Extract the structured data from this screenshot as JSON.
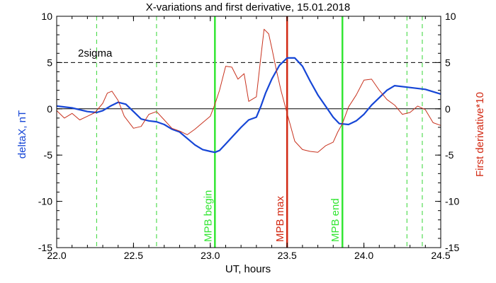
{
  "chart_data": {
    "type": "line",
    "title": "X-variations and first derivative, 15.01.2018",
    "xlabel": "UT, hours",
    "ylabel_left": "deltaX, nT",
    "ylabel_right": "First derivative*10",
    "xlim": [
      22.0,
      24.5
    ],
    "ylim_left": [
      -15,
      10
    ],
    "ylim_right": [
      -15,
      10
    ],
    "x_ticks": [
      22.0,
      22.5,
      23.0,
      23.5,
      24.0,
      24.5
    ],
    "x_tick_labels": [
      "22.0",
      "22.5",
      "23.0",
      "23.5",
      "24.0",
      "24.5"
    ],
    "y_ticks": [
      -15,
      -10,
      -5,
      0,
      5,
      10
    ],
    "y_tick_labels": [
      "-15",
      "-10",
      "-5",
      "0",
      "5",
      "10"
    ],
    "colors": {
      "deltaX": "#1646d6",
      "derivative": "#c8321e",
      "mpb_boundary": "#33e633",
      "mpb_max": "#d22a14",
      "dashed_green": "#33d633",
      "axes": "#000000"
    },
    "reference_lines": {
      "two_sigma": {
        "label": "2sigma",
        "value": 5
      },
      "zero": {
        "value": 0
      }
    },
    "vertical_markers": [
      {
        "x": 23.03,
        "label": "MPB begin",
        "kind": "mpb_boundary"
      },
      {
        "x": 23.5,
        "label": "MPB max",
        "kind": "mpb_max"
      },
      {
        "x": 23.86,
        "label": "MPB end",
        "kind": "mpb_boundary"
      }
    ],
    "dashed_markers": [
      22.26,
      22.65,
      24.28,
      24.38
    ],
    "series": [
      {
        "key": "deltaX",
        "axis": "left",
        "x": [
          22.0,
          22.1,
          22.2,
          22.26,
          22.3,
          22.35,
          22.4,
          22.45,
          22.5,
          22.55,
          22.6,
          22.65,
          22.7,
          22.75,
          22.8,
          22.85,
          22.9,
          22.95,
          23.0,
          23.03,
          23.06,
          23.1,
          23.15,
          23.2,
          23.25,
          23.3,
          23.33,
          23.36,
          23.4,
          23.45,
          23.5,
          23.55,
          23.6,
          23.65,
          23.7,
          23.75,
          23.8,
          23.84,
          23.9,
          23.95,
          24.0,
          24.05,
          24.1,
          24.15,
          24.2,
          24.3,
          24.4,
          24.5
        ],
        "values": [
          0.3,
          0.1,
          -0.3,
          -0.4,
          -0.2,
          0.3,
          0.7,
          0.5,
          -0.3,
          -1.1,
          -1.3,
          -1.4,
          -1.7,
          -2.2,
          -2.5,
          -3.2,
          -3.9,
          -4.4,
          -4.6,
          -4.7,
          -4.5,
          -3.8,
          -2.9,
          -2.0,
          -1.2,
          -0.9,
          0.3,
          1.7,
          3.2,
          4.7,
          5.5,
          5.5,
          4.6,
          3.0,
          1.5,
          0.3,
          -0.9,
          -1.6,
          -1.7,
          -1.3,
          -0.6,
          0.4,
          1.2,
          2.0,
          2.5,
          2.3,
          2.1,
          1.6
        ]
      },
      {
        "key": "derivative",
        "axis": "right",
        "x": [
          22.0,
          22.05,
          22.1,
          22.15,
          22.2,
          22.25,
          22.3,
          22.33,
          22.36,
          22.4,
          22.44,
          22.5,
          22.55,
          22.6,
          22.65,
          22.7,
          22.75,
          22.8,
          22.85,
          22.9,
          22.95,
          23.0,
          23.03,
          23.06,
          23.1,
          23.14,
          23.18,
          23.22,
          23.25,
          23.3,
          23.33,
          23.35,
          23.38,
          23.4,
          23.43,
          23.46,
          23.5,
          23.55,
          23.6,
          23.65,
          23.7,
          23.75,
          23.8,
          23.83,
          23.86,
          23.9,
          23.95,
          24.0,
          24.05,
          24.1,
          24.15,
          24.2,
          24.25,
          24.3,
          24.35,
          24.4,
          24.45,
          24.5
        ],
        "values": [
          -0.2,
          -1.0,
          -0.5,
          -1.2,
          -0.8,
          -0.4,
          0.6,
          1.7,
          1.9,
          0.9,
          -0.8,
          -2.1,
          -1.9,
          -0.6,
          -0.3,
          -1.2,
          -2.1,
          -2.4,
          -2.8,
          -2.2,
          -1.5,
          -0.8,
          0.5,
          2.0,
          4.6,
          4.5,
          3.2,
          3.8,
          0.8,
          1.3,
          5.7,
          8.6,
          8.1,
          6.6,
          4.2,
          2.0,
          -0.5,
          -3.5,
          -4.4,
          -4.6,
          -4.7,
          -4.0,
          -3.6,
          -2.5,
          -1.6,
          0.2,
          1.5,
          3.1,
          3.2,
          2.0,
          1.0,
          0.4,
          -0.6,
          -0.4,
          0.3,
          -0.1,
          -1.5,
          -1.8
        ]
      }
    ]
  }
}
